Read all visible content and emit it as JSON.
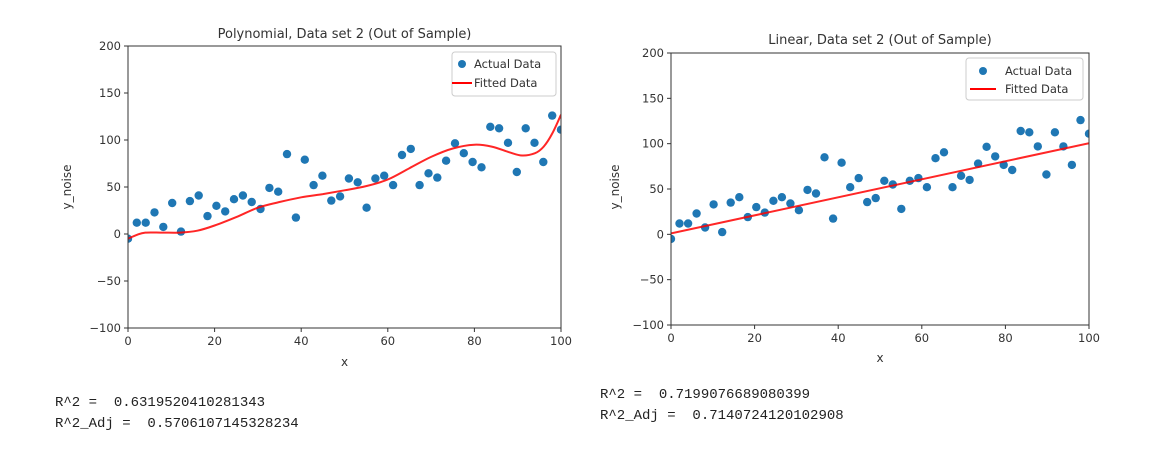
{
  "chart_data": [
    {
      "type": "scatter",
      "title": "Polynomial, Data set 2 (Out of Sample)",
      "xlabel": "x",
      "ylabel": "y_noise",
      "xlim": [
        0,
        100
      ],
      "ylim": [
        -100,
        200
      ],
      "xticks": [
        0,
        20,
        40,
        60,
        80,
        100
      ],
      "yticks": [
        -100,
        -50,
        0,
        50,
        100,
        150,
        200
      ],
      "xtick_labels": [
        "0",
        "20",
        "40",
        "60",
        "80",
        "100"
      ],
      "ytick_labels": [
        "−100",
        "−50",
        "0",
        "50",
        "100",
        "150",
        "200"
      ],
      "grid": false,
      "legend_position": "top-right",
      "series": [
        {
          "name": "Actual Data",
          "kind": "scatter",
          "color": "#1f77b4",
          "x": [
            0,
            2.04,
            4.08,
            6.12,
            8.16,
            10.2,
            12.24,
            14.29,
            16.33,
            18.37,
            20.41,
            22.45,
            24.49,
            26.53,
            28.57,
            30.61,
            32.65,
            34.69,
            36.73,
            38.78,
            40.82,
            42.86,
            44.9,
            46.94,
            48.98,
            51.02,
            53.06,
            55.1,
            57.14,
            59.18,
            61.22,
            63.27,
            65.31,
            67.35,
            69.39,
            71.43,
            73.47,
            75.51,
            77.55,
            79.59,
            81.63,
            83.67,
            85.71,
            87.76,
            89.8,
            91.84,
            93.88,
            95.92,
            97.96,
            100
          ],
          "y": [
            -5,
            12,
            12,
            23,
            7.5,
            33,
            2.5,
            35,
            41,
            19,
            30,
            24,
            37,
            41,
            34,
            26.6,
            49,
            45,
            85,
            17.4,
            79,
            52,
            62,
            35.5,
            40,
            59,
            55,
            28,
            59,
            62,
            52,
            84,
            90.5,
            52,
            64.6,
            60,
            78,
            96.5,
            86,
            76.6,
            71,
            114,
            112.5,
            97,
            66,
            112.5,
            97,
            76.6,
            126,
            111
          ]
        },
        {
          "name": "Fitted Data",
          "kind": "line",
          "color": "#ff0000",
          "x": [
            0,
            2,
            4,
            8,
            12,
            16,
            20,
            25,
            30,
            35,
            40,
            45,
            50,
            55,
            60,
            65,
            70,
            75,
            80,
            84,
            88,
            91,
            94,
            96,
            98,
            100
          ],
          "y": [
            -5,
            -1,
            1.5,
            1.5,
            1.5,
            3.5,
            9,
            18,
            28,
            34,
            39,
            42.5,
            46.5,
            51,
            58,
            70,
            82,
            91,
            95,
            93,
            87,
            83.5,
            86,
            93,
            107,
            127
          ]
        }
      ],
      "annotation": {
        "r2_label": "R^2 =  ",
        "r2_value": "0.6319520410281343",
        "r2_adj_label": "R^2_Adj =  ",
        "r2_adj_value": "0.5706107145328234"
      }
    },
    {
      "type": "scatter",
      "title": "Linear, Data set 2 (Out of Sample)",
      "xlabel": "x",
      "ylabel": "y_noise",
      "xlim": [
        0,
        100
      ],
      "ylim": [
        -100,
        200
      ],
      "xticks": [
        0,
        20,
        40,
        60,
        80,
        100
      ],
      "yticks": [
        -100,
        -50,
        0,
        50,
        100,
        150,
        200
      ],
      "xtick_labels": [
        "0",
        "20",
        "40",
        "60",
        "80",
        "100"
      ],
      "ytick_labels": [
        "−100",
        "−50",
        "0",
        "50",
        "100",
        "150",
        "200"
      ],
      "grid": false,
      "legend_position": "top-right",
      "series": [
        {
          "name": "Actual Data",
          "kind": "scatter",
          "color": "#1f77b4",
          "x": [
            0,
            2.04,
            4.08,
            6.12,
            8.16,
            10.2,
            12.24,
            14.29,
            16.33,
            18.37,
            20.41,
            22.45,
            24.49,
            26.53,
            28.57,
            30.61,
            32.65,
            34.69,
            36.73,
            38.78,
            40.82,
            42.86,
            44.9,
            46.94,
            48.98,
            51.02,
            53.06,
            55.1,
            57.14,
            59.18,
            61.22,
            63.27,
            65.31,
            67.35,
            69.39,
            71.43,
            73.47,
            75.51,
            77.55,
            79.59,
            81.63,
            83.67,
            85.71,
            87.76,
            89.8,
            91.84,
            93.88,
            95.92,
            97.96,
            100
          ],
          "y": [
            -5,
            12,
            12,
            23,
            7.5,
            33,
            2.5,
            35,
            41,
            19,
            30,
            24,
            37,
            41,
            34,
            26.6,
            49,
            45,
            85,
            17.4,
            79,
            52,
            62,
            35.5,
            40,
            59,
            55,
            28,
            59,
            62,
            52,
            84,
            90.5,
            52,
            64.6,
            60,
            78,
            96.5,
            86,
            76.6,
            71,
            114,
            112.5,
            97,
            66,
            112.5,
            97,
            76.6,
            126,
            111
          ]
        },
        {
          "name": "Fitted Data",
          "kind": "line",
          "color": "#ff0000",
          "x": [
            0,
            100
          ],
          "y": [
            1,
            100.5
          ]
        }
      ],
      "annotation": {
        "r2_label": "R^2 =  ",
        "r2_value": "0.7199076689080399",
        "r2_adj_label": "R^2_Adj =  ",
        "r2_adj_value": "0.7140724120102908"
      }
    }
  ]
}
